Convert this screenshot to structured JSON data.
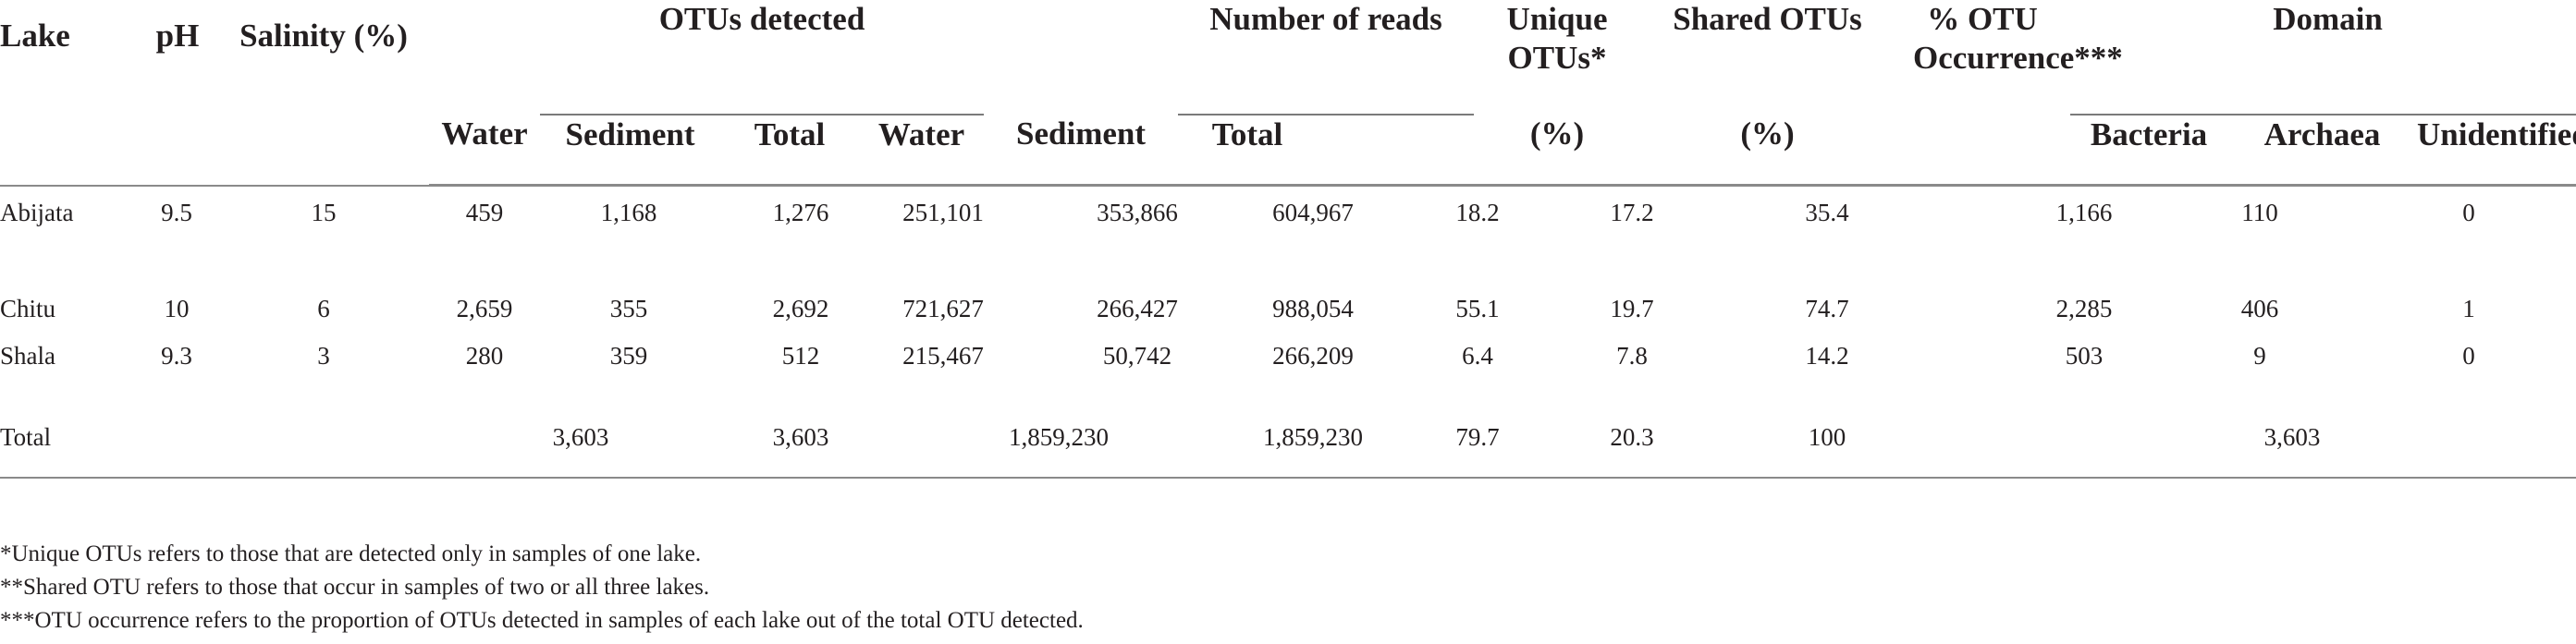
{
  "header": {
    "lake": "Lake",
    "ph": "pH",
    "salinity": "Salinity (%)",
    "otus_detected": "OTUs detected",
    "number_of_reads": "Number of reads",
    "unique_otus": "Unique OTUs*",
    "shared_otus": "Shared OTUs",
    "otu_occurrence": "% OTU Occurrence***",
    "domain": "Domain",
    "sub": {
      "water": "Water",
      "sediment": "Sediment",
      "total": "Total",
      "reads_water": "Water",
      "reads_sediment": "Sediment",
      "reads_total": "Total",
      "unique_pct": "(%)",
      "shared_pct": "(%)",
      "bacteria": "Bacteria",
      "archaea": "Archaea",
      "unidentified": "Unidentified"
    }
  },
  "rows": [
    {
      "lake": "Abijata",
      "ph": "9.5",
      "salinity": "15",
      "otu_water": "459",
      "otu_sediment": "1,168",
      "otu_total": "1,276",
      "reads_water": "251,101",
      "reads_sediment": "353,866",
      "reads_total": "604,967",
      "unique": "18.2",
      "shared": "17.2",
      "occurrence": "35.4",
      "bacteria": "1,166",
      "archaea": "110",
      "unidentified": "0"
    },
    {
      "lake": "Chitu",
      "ph": "10",
      "salinity": "6",
      "otu_water": "2,659",
      "otu_sediment": "355",
      "otu_total": "2,692",
      "reads_water": "721,627",
      "reads_sediment": "266,427",
      "reads_total": "988,054",
      "unique": "55.1",
      "shared": "19.7",
      "occurrence": "74.7",
      "bacteria": "2,285",
      "archaea": "406",
      "unidentified": "1"
    },
    {
      "lake": "Shala",
      "ph": "9.3",
      "salinity": "3",
      "otu_water": "280",
      "otu_sediment": "359",
      "otu_total": "512",
      "reads_water": "215,467",
      "reads_sediment": "50,742",
      "reads_total": "266,209",
      "unique": "6.4",
      "shared": "7.8",
      "occurrence": "14.2",
      "bacteria": "503",
      "archaea": "9",
      "unidentified": "0"
    }
  ],
  "total_row": {
    "lake": "Total",
    "otu_combined": "3,603",
    "otu_total": "3,603",
    "reads_combined": "1,859,230",
    "reads_total": "1,859,230",
    "unique": "79.7",
    "shared": "20.3",
    "occurrence": "100",
    "domain_total": "3,603"
  },
  "footnotes": [
    "*Unique OTUs refers to those that are detected only in samples of one lake.",
    "**Shared OTU refers to those that occur in samples of two or all three lakes.",
    "***OTU occurrence refers to the proportion of OTUs detected in samples of each lake out of the total OTU detected."
  ]
}
